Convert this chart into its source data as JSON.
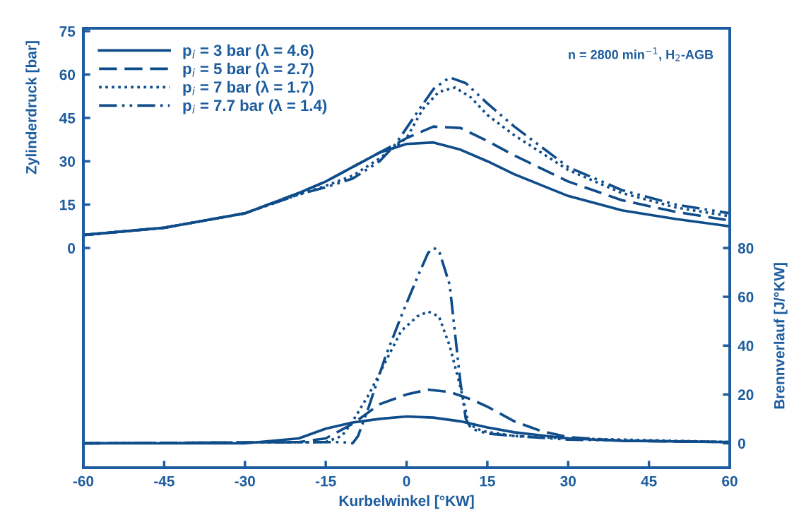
{
  "chart_data": {
    "type": "line",
    "xlabel": "Kurbelwinkel [°KW]",
    "ylabel": "Zylinderdruck [bar]",
    "y2label": "Brennverlauf [J/°KW]",
    "xlim": [
      -60,
      60
    ],
    "xticks": [
      -60,
      -45,
      -30,
      -15,
      0,
      15,
      30,
      45,
      60
    ],
    "ylim": [
      -76,
      76
    ],
    "yticks": [
      0,
      15,
      30,
      45,
      60,
      75
    ],
    "y2lim": [
      -10,
      170
    ],
    "y2ticks": [
      0,
      20,
      40,
      60,
      80
    ],
    "grid": false,
    "legend": "top left",
    "marker": "none",
    "annotations": [
      "n = 2800 min$^{−1}$, H$_{2}$-AGB"
    ],
    "series": [
      {
        "name": "p$_{i}$ = 3 bar (λ = 4.6)",
        "color": "#0f4c8a",
        "line_style": "solid",
        "x": [
          -60,
          -45,
          -30,
          -20,
          -15,
          -10,
          -5,
          0,
          5,
          10,
          15,
          20,
          30,
          40,
          50,
          60
        ],
        "values": [
          4.5,
          7,
          12,
          19,
          23,
          28,
          33,
          36,
          36.5,
          34,
          30,
          25.5,
          18,
          13,
          10,
          7.5
        ]
      },
      {
        "name": "p$_{i}$ = 5 bar (λ = 2.7)",
        "color": "#0f4c8a",
        "line_style": "dashed",
        "x": [
          -60,
          -45,
          -30,
          -20,
          -15,
          -10,
          -5,
          0,
          5,
          10,
          15,
          20,
          30,
          40,
          50,
          60
        ],
        "values": [
          4.5,
          7,
          12,
          19,
          23,
          28,
          33,
          38,
          42,
          41.5,
          37,
          32,
          23,
          16.5,
          12.5,
          9.5
        ]
      },
      {
        "name": "p$_{i}$ = 7 bar (λ = 1.7)",
        "color": "#0f4c8a",
        "line_style": "dotted",
        "x": [
          -60,
          -45,
          -30,
          -20,
          -15,
          -10,
          -5,
          0,
          3,
          6,
          9,
          12,
          15,
          20,
          30,
          40,
          50,
          60
        ],
        "values": [
          4.5,
          7,
          12,
          18.5,
          21.5,
          25,
          31,
          38,
          48,
          54,
          55.5,
          52,
          46,
          39,
          27,
          19,
          14,
          11
        ]
      },
      {
        "name": "p$_{i}$ = 7.7 bar (λ = 1.4)",
        "color": "#0f4c8a",
        "line_style": "dashdot",
        "x": [
          -60,
          -45,
          -30,
          -20,
          -15,
          -10,
          -5,
          -2,
          2,
          5,
          8,
          11,
          15,
          20,
          30,
          40,
          50,
          60
        ],
        "values": [
          4.5,
          7,
          12,
          18.5,
          21,
          24,
          30,
          36,
          47,
          55,
          59,
          57,
          50,
          42,
          28,
          20,
          15,
          12
        ]
      },
      {
        "color": "#0f4c8a",
        "line_style": "solid",
        "axis": "y2",
        "x": [
          -60,
          -30,
          -20,
          -15,
          -10,
          -5,
          0,
          5,
          10,
          15,
          20,
          30,
          40,
          60
        ],
        "values": [
          0,
          0,
          2,
          6,
          8.5,
          10,
          11,
          10.5,
          9,
          6.5,
          4.5,
          2,
          1,
          0.5
        ]
      },
      {
        "color": "#0f4c8a",
        "line_style": "dashed",
        "axis": "y2",
        "x": [
          -60,
          -20,
          -15,
          -10,
          -5,
          0,
          4,
          8,
          12,
          15,
          20,
          25,
          30,
          40,
          60
        ],
        "values": [
          0,
          0.5,
          2,
          8,
          16,
          20,
          22,
          21,
          18,
          15,
          9,
          5,
          2.5,
          1,
          0.5
        ]
      },
      {
        "color": "#0f4c8a",
        "line_style": "dotted",
        "axis": "y2",
        "x": [
          -60,
          -15,
          -12,
          -10,
          -7,
          -4,
          -1,
          2,
          4,
          6,
          8,
          10,
          11.5,
          14,
          20,
          30,
          60
        ],
        "values": [
          0,
          0.5,
          3,
          9,
          20,
          33,
          46,
          52,
          54,
          52,
          40,
          23,
          8,
          5,
          3,
          2,
          0.5
        ]
      },
      {
        "color": "#0f4c8a",
        "line_style": "dashdot",
        "axis": "y2",
        "x": [
          -60,
          -12,
          -10,
          -9,
          -7,
          -4,
          -1,
          2,
          4,
          5,
          6,
          8,
          9,
          10,
          11,
          12,
          15,
          20,
          30,
          60
        ],
        "values": [
          0,
          0.5,
          0,
          3,
          15,
          35,
          52,
          68,
          78,
          80,
          79,
          65,
          45,
          25,
          10,
          6,
          4,
          3,
          1.5,
          0.5
        ]
      }
    ]
  }
}
